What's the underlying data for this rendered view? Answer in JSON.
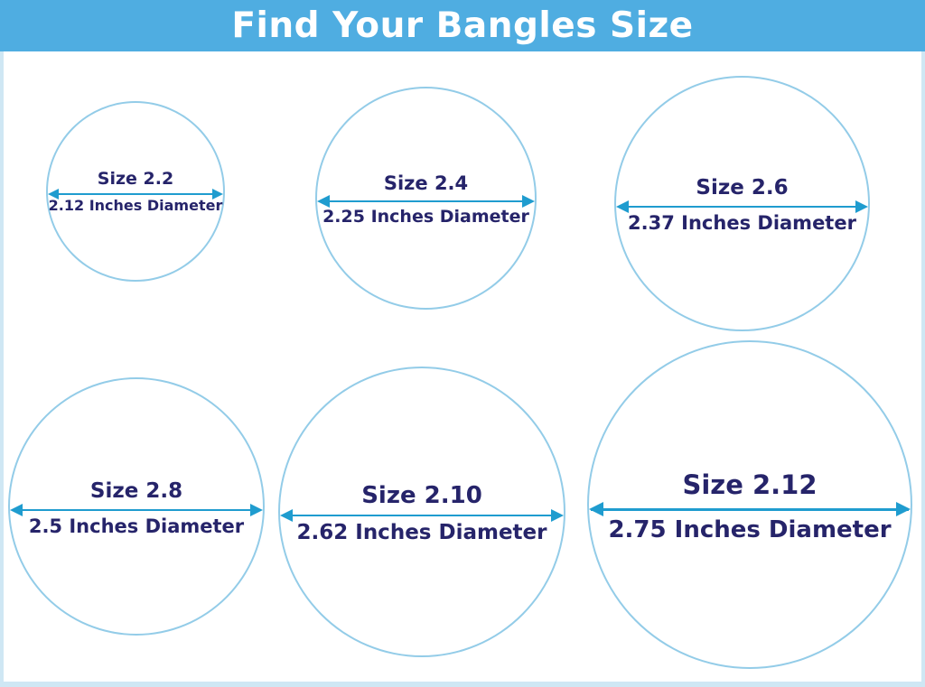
{
  "header": {
    "title": "Find Your Bangles Size"
  },
  "colors": {
    "header_bg": "#4fade1",
    "header_text": "#ffffff",
    "circle_stroke": "#93cce8",
    "arrow": "#1f9ccf",
    "label_text": "#26246a",
    "frame_border": "#cfe7f4",
    "page_bg": "#ffffff"
  },
  "bangles": [
    {
      "size": "2.2",
      "diameter_inches": 2.12,
      "size_label": "Size 2.2",
      "diameter_label": "2.12 Inches Diameter"
    },
    {
      "size": "2.4",
      "diameter_inches": 2.25,
      "size_label": "Size 2.4",
      "diameter_label": "2.25 Inches Diameter"
    },
    {
      "size": "2.6",
      "diameter_inches": 2.37,
      "size_label": "Size 2.6",
      "diameter_label": "2.37 Inches Diameter"
    },
    {
      "size": "2.8",
      "diameter_inches": 2.5,
      "size_label": "Size 2.8",
      "diameter_label": "2.5 Inches Diameter"
    },
    {
      "size": "2.10",
      "diameter_inches": 2.62,
      "size_label": "Size 2.10",
      "diameter_label": "2.62 Inches Diameter"
    },
    {
      "size": "2.12",
      "diameter_inches": 2.75,
      "size_label": "Size 2.12",
      "diameter_label": "2.75 Inches Diameter"
    }
  ]
}
